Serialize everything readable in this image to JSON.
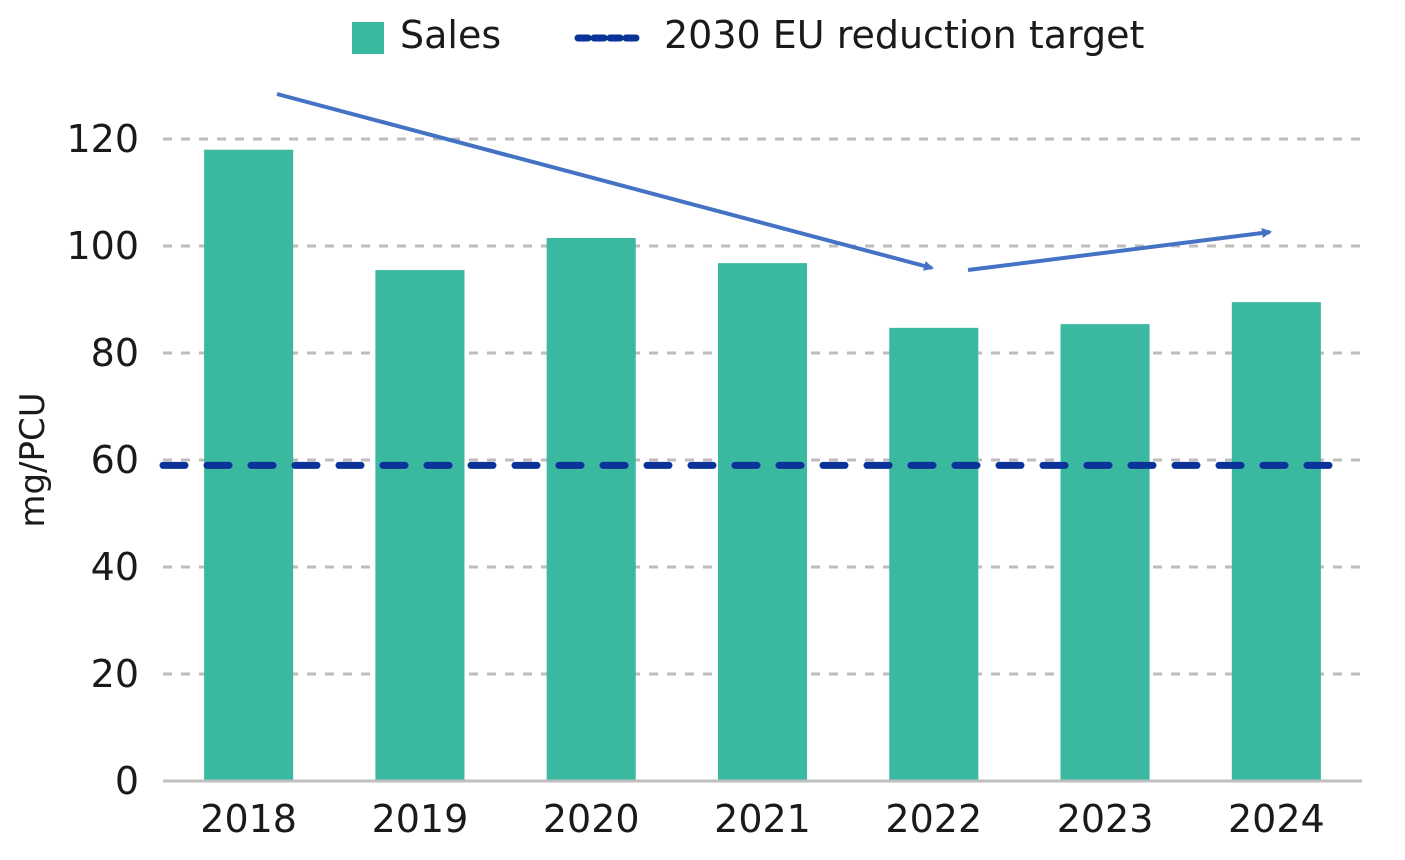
{
  "chart_data": {
    "type": "bar",
    "title": "",
    "xlabel": "",
    "ylabel": "mg/PCU",
    "ylim": [
      0,
      120
    ],
    "yticks": [
      0,
      20,
      40,
      60,
      80,
      100,
      120
    ],
    "grid": true,
    "legend_position": "top",
    "categories": [
      "2018",
      "2019",
      "2020",
      "2021",
      "2022",
      "2023",
      "2024"
    ],
    "series": [
      {
        "name": "Sales",
        "type": "bar",
        "color": "#3bb8a0",
        "values": [
          118,
          95.5,
          101.5,
          96.8,
          84.7,
          85.4,
          89.5
        ]
      }
    ],
    "reference_lines": [
      {
        "name": "2030 EU reduction target",
        "value": 59,
        "color": "#0a3299",
        "style": "dashed"
      }
    ],
    "annotations": [
      {
        "type": "arrow",
        "description": "downward trend arrow from 2018 to 2022",
        "color": "#4472c4"
      },
      {
        "type": "arrow",
        "description": "upward trend arrow from 2022 to 2024",
        "color": "#4472c4"
      }
    ]
  },
  "legend": {
    "items": [
      {
        "label": "Sales",
        "color": "#3bb8a0",
        "kind": "square"
      },
      {
        "label": "2030 EU reduction target",
        "color": "#0a3299",
        "kind": "dashed-line"
      }
    ]
  }
}
